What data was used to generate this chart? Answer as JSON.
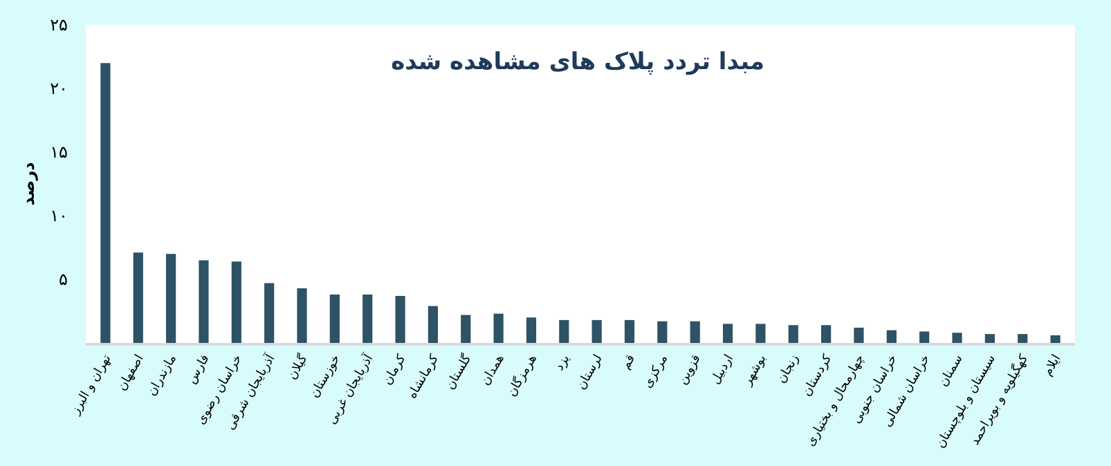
{
  "chart_data": {
    "type": "bar",
    "title": "مبدا تردد پلاک های مشاهده شده",
    "ylabel": "درصد",
    "categories": [
      "تهران و البرز",
      "اصفهان",
      "مازندران",
      "فارس",
      "خراسان رضوی",
      "آذربایجان شرقی",
      "گیلان",
      "خوزستان",
      "آذربایجان غربی",
      "کرمان",
      "کرمانشاه",
      "گلستان",
      "همدان",
      "هرمزگان",
      "یزد",
      "لرستان",
      "قم",
      "مرکزی",
      "قزوین",
      "اردبیل",
      "بوشهر",
      "زنجان",
      "کردستان",
      "چهارمحال و بختیاری",
      "خراسان جنوبی",
      "خراسان شمالی",
      "سمنان",
      "سیستان و بلوچستان",
      "کهگیلویه و بویراحمد",
      "ایلام"
    ],
    "values": [
      22.0,
      7.1,
      7.0,
      6.5,
      6.4,
      4.7,
      4.3,
      3.8,
      3.8,
      3.7,
      2.9,
      2.2,
      2.3,
      2.0,
      1.8,
      1.8,
      1.8,
      1.7,
      1.7,
      1.5,
      1.5,
      1.4,
      1.4,
      1.2,
      1.0,
      0.9,
      0.8,
      0.7,
      0.7,
      0.6
    ],
    "color": "#2e5266",
    "ylim": [
      0,
      25
    ],
    "yticks": [
      {
        "value": 5,
        "label": "۵"
      },
      {
        "value": 10,
        "label": "۱۰"
      },
      {
        "value": 15,
        "label": "۱۵"
      },
      {
        "value": 20,
        "label": "۲۰"
      },
      {
        "value": 25,
        "label": "۲۵"
      }
    ],
    "legend": false
  }
}
